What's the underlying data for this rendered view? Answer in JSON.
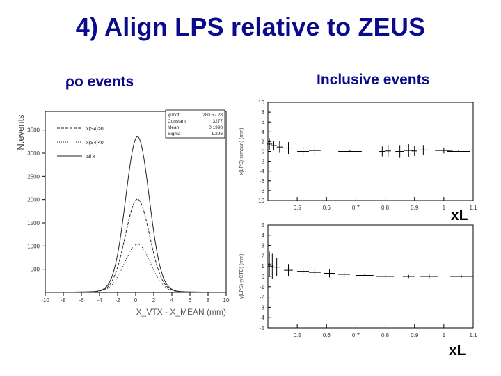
{
  "slide": {
    "title": "4) Align LPS relative to ZEUS",
    "left_heading": "ρo events",
    "right_heading": "Inclusive events"
  },
  "colors": {
    "title": "#0a0a8c",
    "axes": "#000000",
    "background": "#ffffff"
  },
  "chart_data": [
    {
      "type": "line",
      "xlabel": "X_VTX - X_MEAN (mm)",
      "ylabel": "N.events",
      "xlim": [
        -10,
        10
      ],
      "ylim": [
        0,
        3900
      ],
      "x_ticks": [
        -10,
        -8,
        -6,
        -4,
        -2,
        0,
        2,
        4,
        6,
        8,
        10
      ],
      "y_ticks": [
        500,
        1000,
        1500,
        2000,
        2500,
        3000,
        3500
      ],
      "legend_position": "top-left",
      "stats_box": {
        "rows": [
          [
            "χ²/ndf",
            "280.5  /  28"
          ],
          [
            "Constant",
            "3277"
          ],
          [
            "Mean",
            "0.1998"
          ],
          [
            "Sigma",
            "1.296"
          ]
        ]
      },
      "series": [
        {
          "name": "x(S4)>0",
          "style": "dashed",
          "center": 0.2,
          "amplitude": 1950,
          "sigma": 1.35,
          "tail": 60
        },
        {
          "name": "x(S4)<0",
          "style": "dotted",
          "center": 0.2,
          "amplitude": 1000,
          "sigma": 1.45,
          "tail": 40
        },
        {
          "name": "all x",
          "style": "solid",
          "center": 0.2,
          "amplitude": 3280,
          "sigma": 1.3,
          "tail": 80
        }
      ]
    },
    {
      "type": "scatter",
      "xlabel": "",
      "ylabel": "x(LPS)-x(mean) (mm)",
      "xlim": [
        0.4,
        1.1
      ],
      "ylim": [
        -10,
        10
      ],
      "x_ticks": [
        0.5,
        0.6,
        0.7,
        0.8,
        0.9,
        1,
        1.1
      ],
      "y_ticks": [
        -10,
        -8,
        -6,
        -4,
        -2,
        0,
        2,
        4,
        6,
        8,
        10
      ],
      "points": [
        {
          "x": 0.405,
          "y": 1.5,
          "xerr": 0.01,
          "yerr": 1.2
        },
        {
          "x": 0.42,
          "y": 1.2,
          "xerr": 0.01,
          "yerr": 1.0
        },
        {
          "x": 0.44,
          "y": 0.9,
          "xerr": 0.01,
          "yerr": 1.2
        },
        {
          "x": 0.47,
          "y": 0.7,
          "xerr": 0.015,
          "yerr": 1.2
        },
        {
          "x": 0.52,
          "y": 0.0,
          "xerr": 0.02,
          "yerr": 0.9
        },
        {
          "x": 0.56,
          "y": 0.2,
          "xerr": 0.02,
          "yerr": 1.0
        },
        {
          "x": 0.68,
          "y": 0.0,
          "xerr": 0.04,
          "yerr": 0.2
        },
        {
          "x": 0.79,
          "y": 0.0,
          "xerr": 0.01,
          "yerr": 1.0
        },
        {
          "x": 0.81,
          "y": 0.1,
          "xerr": 0.01,
          "yerr": 1.2
        },
        {
          "x": 0.85,
          "y": 0.0,
          "xerr": 0.015,
          "yerr": 1.3
        },
        {
          "x": 0.88,
          "y": 0.2,
          "xerr": 0.015,
          "yerr": 1.3
        },
        {
          "x": 0.9,
          "y": 0.1,
          "xerr": 0.01,
          "yerr": 1.0
        },
        {
          "x": 0.93,
          "y": 0.3,
          "xerr": 0.015,
          "yerr": 1.0
        },
        {
          "x": 1.0,
          "y": 0.2,
          "xerr": 0.03,
          "yerr": 0.6
        },
        {
          "x": 1.05,
          "y": 0.0,
          "xerr": 0.04,
          "yerr": 0.2
        }
      ]
    },
    {
      "type": "scatter",
      "xlabel": "xL",
      "ylabel": "y(LPS)-y(CTD) (mm)",
      "xlim": [
        0.4,
        1.1
      ],
      "ylim": [
        -5,
        5
      ],
      "x_ticks": [
        0.5,
        0.6,
        0.7,
        0.8,
        0.9,
        1,
        1.1
      ],
      "y_ticks": [
        -5,
        -4,
        -3,
        -2,
        -1,
        0,
        1,
        2,
        3,
        4,
        5
      ],
      "points": [
        {
          "x": 0.405,
          "y": 1.2,
          "xerr": 0.005,
          "yerr": 1.2
        },
        {
          "x": 0.415,
          "y": 1.0,
          "xerr": 0.005,
          "yerr": 1.2
        },
        {
          "x": 0.43,
          "y": 0.9,
          "xerr": 0.01,
          "yerr": 0.9
        },
        {
          "x": 0.47,
          "y": 0.6,
          "xerr": 0.015,
          "yerr": 0.6
        },
        {
          "x": 0.52,
          "y": 0.5,
          "xerr": 0.02,
          "yerr": 0.3
        },
        {
          "x": 0.56,
          "y": 0.4,
          "xerr": 0.02,
          "yerr": 0.4
        },
        {
          "x": 0.61,
          "y": 0.3,
          "xerr": 0.02,
          "yerr": 0.4
        },
        {
          "x": 0.66,
          "y": 0.2,
          "xerr": 0.02,
          "yerr": 0.3
        },
        {
          "x": 0.73,
          "y": 0.1,
          "xerr": 0.03,
          "yerr": 0.1
        },
        {
          "x": 0.8,
          "y": 0.0,
          "xerr": 0.03,
          "yerr": 0.2
        },
        {
          "x": 0.88,
          "y": 0.0,
          "xerr": 0.02,
          "yerr": 0.15
        },
        {
          "x": 0.95,
          "y": 0.0,
          "xerr": 0.03,
          "yerr": 0.2
        },
        {
          "x": 1.06,
          "y": 0.0,
          "xerr": 0.04,
          "yerr": 0.1
        }
      ]
    }
  ]
}
